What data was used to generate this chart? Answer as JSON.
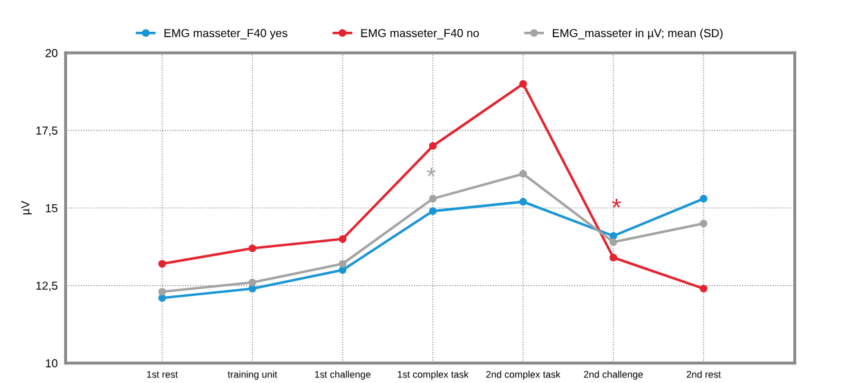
{
  "chart_data": {
    "type": "line",
    "ylabel": "µV",
    "categories": [
      "1st rest",
      "training unit",
      "1st challenge",
      "1st complex task",
      "2nd complex task",
      "2nd challenge",
      "2nd rest"
    ],
    "series": [
      {
        "name": "EMG masseter_F40 yes",
        "color": "#1a96d4",
        "values": [
          12.1,
          12.4,
          13.0,
          14.9,
          15.2,
          14.1,
          15.3
        ]
      },
      {
        "name": "EMG masseter_F40 no",
        "color": "#e4232f",
        "values": [
          13.2,
          13.7,
          14.0,
          17.0,
          19.0,
          13.4,
          12.4
        ]
      },
      {
        "name": "EMG_masseter in µV; mean (SD)",
        "color": "#a3a3a3",
        "values": [
          12.3,
          12.6,
          13.2,
          15.3,
          16.1,
          13.9,
          14.5
        ]
      }
    ],
    "ylim": [
      10,
      20
    ],
    "yticks": [
      10,
      {
        "value": 12.5,
        "label": "12,5"
      },
      15,
      {
        "value": 17.5,
        "label": "17,5"
      },
      20
    ],
    "annotations": [
      "*",
      "*"
    ],
    "grid": true,
    "legend": "top",
    "marker": "circle",
    "line_style": "solid"
  }
}
